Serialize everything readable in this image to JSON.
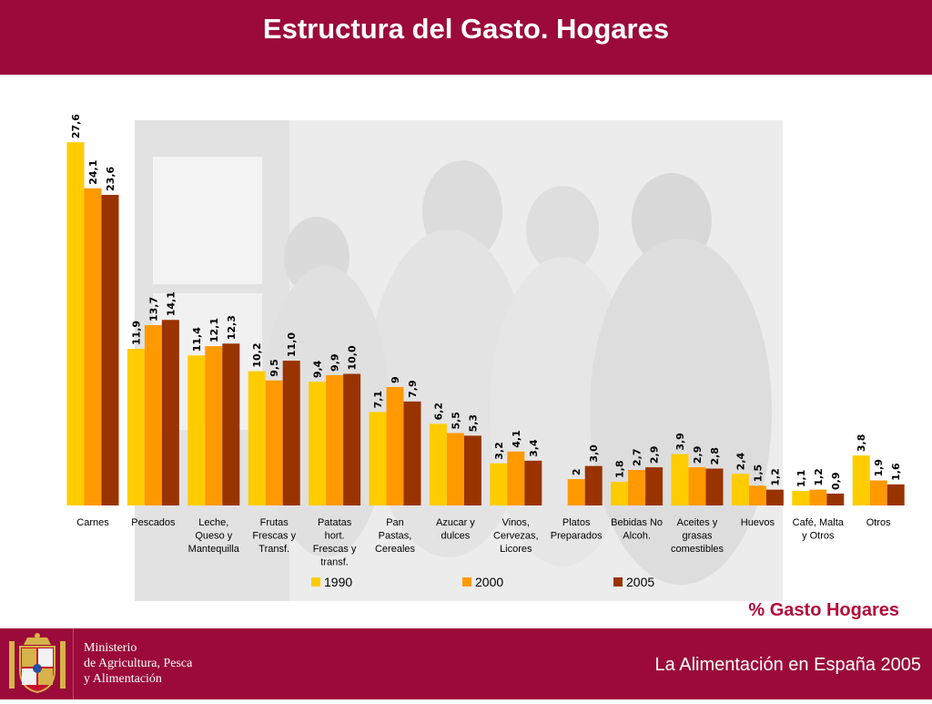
{
  "header": {
    "title": "Estructura del Gasto. Hogares"
  },
  "subtitle": "% Gasto Hogares",
  "footer": {
    "ministry_lines": [
      "Ministerio",
      "de Agricultura, Pesca",
      "y Alimentación"
    ],
    "right_text": "La Alimentación en España 2005"
  },
  "colors": {
    "header_bg": "#9b0a3a",
    "s1990": "#ffcc00",
    "s2000": "#ff9900",
    "s2005": "#993300",
    "subtitle": "#b3093a"
  },
  "chart_data": {
    "type": "bar",
    "categories": [
      [
        "Carnes"
      ],
      [
        "Pescados"
      ],
      [
        "Leche,",
        "Queso y",
        "Mantequilla"
      ],
      [
        "Frutas",
        "Frescas y",
        "Transf."
      ],
      [
        "Patatas",
        "hort.",
        "Frescas y",
        "transf."
      ],
      [
        "Pan",
        "Pastas,",
        "Cereales"
      ],
      [
        "Azucar y",
        "dulces"
      ],
      [
        "Vinos,",
        "Cervezas,",
        "Licores"
      ],
      [
        "Platos",
        "Preparados"
      ],
      [
        "Bebidas No",
        "Alcoh."
      ],
      [
        "Aceites y",
        "grasas",
        "comestibles"
      ],
      [
        "Huevos"
      ],
      [
        "Café, Malta",
        "y Otros"
      ],
      [
        "Otros"
      ]
    ],
    "series": [
      {
        "name": "1990",
        "color": "#ffcc00",
        "values": [
          27.6,
          11.9,
          11.4,
          10.2,
          9.4,
          7.1,
          6.2,
          3.2,
          null,
          1.8,
          3.9,
          2.4,
          1.1,
          3.8
        ],
        "labels": [
          "27,6",
          "11,9",
          "11,4",
          "10,2",
          "9,4",
          "7,1",
          "6,2",
          "3,2",
          "",
          "1,8",
          "3,9",
          "2,4",
          "1,1",
          "3,8"
        ]
      },
      {
        "name": "2000",
        "color": "#ff9900",
        "values": [
          24.1,
          13.7,
          12.1,
          9.5,
          9.9,
          9,
          5.5,
          4.1,
          2,
          2.7,
          2.9,
          1.5,
          1.2,
          1.9
        ],
        "labels": [
          "24,1",
          "13,7",
          "12,1",
          "9,5",
          "9,9",
          "9",
          "5,5",
          "4,1",
          "2",
          "2,7",
          "2,9",
          "1,5",
          "1,2",
          "1,9"
        ]
      },
      {
        "name": "2005",
        "color": "#993300",
        "values": [
          23.6,
          14.1,
          12.3,
          11.0,
          10.0,
          7.9,
          5.3,
          3.4,
          3.0,
          2.9,
          2.8,
          1.2,
          0.9,
          1.6
        ],
        "labels": [
          "23,6",
          "14,1",
          "12,3",
          "11,0",
          "10,0",
          "7,9",
          "5,3",
          "3,4",
          "3,0",
          "2,9",
          "2,8",
          "1,2",
          "0,9",
          "1,6"
        ]
      }
    ],
    "ylim": [
      0,
      28
    ],
    "grid": false,
    "legend": "bottom-center"
  }
}
